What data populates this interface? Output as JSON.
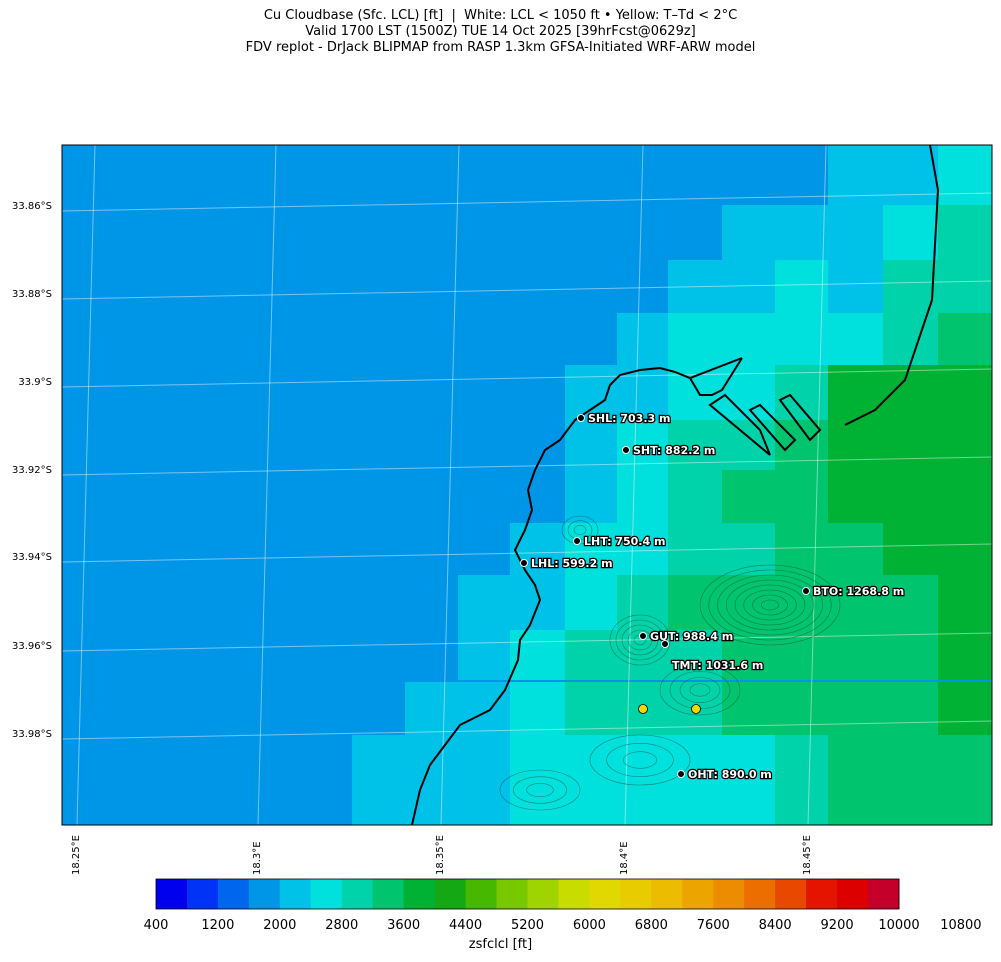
{
  "title": {
    "line1": "Cu Cloudbase (Sfc. LCL) [ft]  |  White: LCL < 1050 ft • Yellow: T–Td < 2°C",
    "line2": "Valid 1700 LST (1500Z) TUE 14 Oct 2025 [39hrFcst@0629z]",
    "line3": "FDV replot - DrJack BLIPMAP from RASP 1.3km GFSA-Initiated WRF-ARW model"
  },
  "map": {
    "lat_labels": [
      "33.86°S",
      "33.88°S",
      "33.9°S",
      "33.92°S",
      "33.94°S",
      "33.96°S",
      "33.98°S"
    ],
    "lon_labels": [
      "18.25°E",
      "18.3°E",
      "18.35°E",
      "18.4°E",
      "18.45°E"
    ],
    "background_color": "#0096e8",
    "stations": [
      {
        "id": "SHL",
        "label": "SHL: 703.3 m"
      },
      {
        "id": "SHT",
        "label": "SHT: 882.2 m"
      },
      {
        "id": "LHT",
        "label": "LHT: 750.4 m"
      },
      {
        "id": "LHL",
        "label": "LHL: 599.2 m"
      },
      {
        "id": "BTO",
        "label": "BTO: 1268.8 m"
      },
      {
        "id": "GUT",
        "label": "GUT: 988.4 m"
      },
      {
        "id": "TMT",
        "label": "TMT: 1031.6 m"
      },
      {
        "id": "OHT",
        "label": "OHT: 890.0 m"
      }
    ],
    "yellow_markers": 2
  },
  "colorbar": {
    "label": "zsfclcl [ft]",
    "ticks": [
      "400",
      "1200",
      "2000",
      "2800",
      "3600",
      "4400",
      "5200",
      "6000",
      "6800",
      "7600",
      "8400",
      "9200",
      "10000",
      "10800"
    ],
    "colors": [
      "#0000ee",
      "#0033f5",
      "#0066ee",
      "#0096e8",
      "#00c2e8",
      "#00e0dc",
      "#00d3aa",
      "#00c46e",
      "#00b234",
      "#14a814",
      "#46b800",
      "#78c800",
      "#a0d400",
      "#c8dc00",
      "#e0d800",
      "#e8cc00",
      "#ecbc00",
      "#eca400",
      "#ec8c00",
      "#ec6e00",
      "#e84800",
      "#e41400",
      "#dc0000",
      "#c4002a"
    ]
  }
}
